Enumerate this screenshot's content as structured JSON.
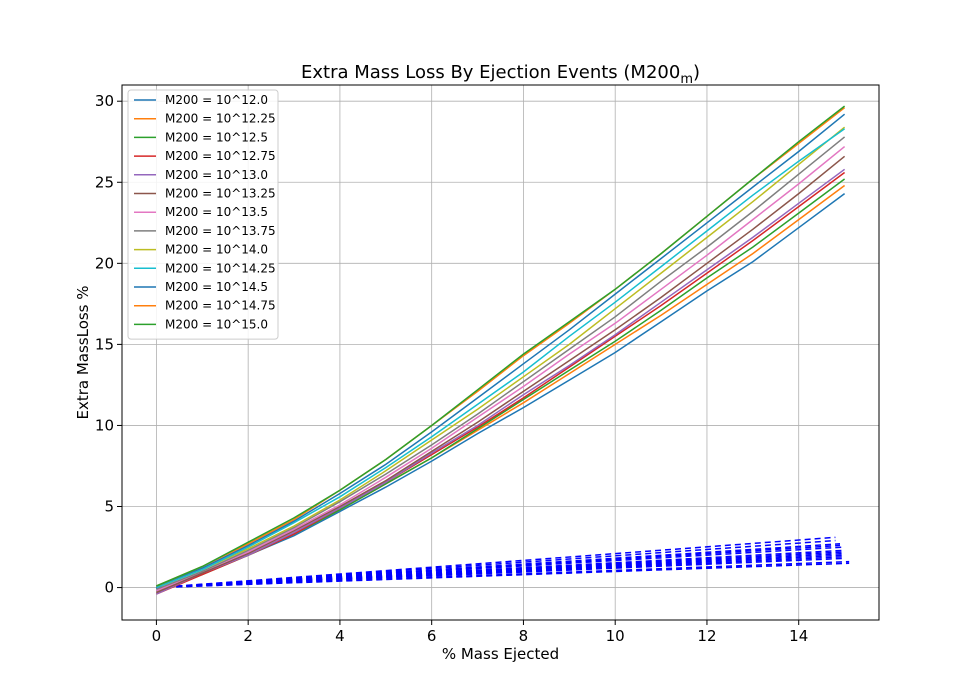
{
  "chart_data": {
    "type": "line",
    "title": "Extra Mass Loss By Ejection Events (M200",
    "title_subscript": "m",
    "title_close": ")",
    "xlabel": "% Mass Ejected",
    "ylabel": "Extra MassLoss %",
    "xlim": [
      -0.75,
      15.75
    ],
    "ylim": [
      -2,
      31
    ],
    "xticks": [
      0,
      2,
      4,
      6,
      8,
      10,
      12,
      14
    ],
    "yticks": [
      0,
      5,
      10,
      15,
      20,
      25,
      30
    ],
    "grid": true,
    "legend_position": "upper-left",
    "x": [
      0,
      1,
      2,
      3,
      4,
      5,
      6,
      7,
      8,
      9,
      10,
      11,
      12,
      13,
      14,
      15
    ],
    "series": [
      {
        "name": "M200 = 10^12.0",
        "color": "#1f77b4",
        "values": [
          -0.2,
          0.9,
          2.0,
          3.2,
          4.7,
          6.2,
          7.8,
          9.5,
          11.1,
          12.8,
          14.5,
          16.4,
          18.3,
          20.1,
          22.2,
          24.3
        ]
      },
      {
        "name": "M200 = 10^12.25",
        "color": "#ff7f0e",
        "values": [
          -0.3,
          0.9,
          2.0,
          3.3,
          4.8,
          6.4,
          8.0,
          9.7,
          11.4,
          13.2,
          15.0,
          16.8,
          18.7,
          20.6,
          22.7,
          24.8
        ]
      },
      {
        "name": "M200 = 10^12.5",
        "color": "#2ca02c",
        "values": [
          -0.3,
          0.8,
          2.0,
          3.3,
          4.8,
          6.4,
          8.0,
          9.8,
          11.6,
          13.4,
          15.2,
          17.1,
          19.1,
          21.0,
          23.1,
          25.2
        ]
      },
      {
        "name": "M200 = 10^12.75",
        "color": "#d62728",
        "values": [
          -0.4,
          0.8,
          2.0,
          3.3,
          4.9,
          6.5,
          8.2,
          9.9,
          11.7,
          13.6,
          15.5,
          17.4,
          19.4,
          21.4,
          23.5,
          25.6
        ]
      },
      {
        "name": "M200 = 10^13.0",
        "color": "#9467bd",
        "values": [
          -0.4,
          0.9,
          2.0,
          3.4,
          4.9,
          6.5,
          8.3,
          10.0,
          11.9,
          13.7,
          15.6,
          17.6,
          19.6,
          21.6,
          23.7,
          25.8
        ]
      },
      {
        "name": "M200 = 10^13.25",
        "color": "#8c564b",
        "values": [
          -0.3,
          0.9,
          2.1,
          3.5,
          5.0,
          6.6,
          8.4,
          10.2,
          12.1,
          14.0,
          15.9,
          17.9,
          20.0,
          22.1,
          24.3,
          26.6
        ]
      },
      {
        "name": "M200 = 10^13.5",
        "color": "#e377c2",
        "values": [
          -0.2,
          1.0,
          2.2,
          3.6,
          5.1,
          6.8,
          8.6,
          10.5,
          12.4,
          14.4,
          16.3,
          18.4,
          20.5,
          22.7,
          24.9,
          27.2
        ]
      },
      {
        "name": "M200 = 10^13.75",
        "color": "#7f7f7f",
        "values": [
          -0.1,
          1.0,
          2.3,
          3.7,
          5.3,
          7.0,
          8.8,
          10.7,
          12.7,
          14.7,
          16.7,
          18.9,
          21.0,
          23.2,
          25.5,
          27.8
        ]
      },
      {
        "name": "M200 = 10^14.0",
        "color": "#bcbd22",
        "values": [
          0.0,
          1.1,
          2.4,
          3.8,
          5.4,
          7.2,
          9.1,
          11.0,
          13.0,
          15.0,
          17.2,
          19.4,
          21.6,
          23.8,
          26.1,
          28.4
        ]
      },
      {
        "name": "M200 = 10^14.25",
        "color": "#17becf",
        "values": [
          0.0,
          1.1,
          2.5,
          4.0,
          5.6,
          7.4,
          9.3,
          11.3,
          13.3,
          15.5,
          17.6,
          19.8,
          22.0,
          24.2,
          26.3,
          28.3
        ]
      },
      {
        "name": "M200 = 10^14.5",
        "color": "#1f77b4",
        "values": [
          0.1,
          1.2,
          2.6,
          4.1,
          5.8,
          7.6,
          9.6,
          11.7,
          13.8,
          15.9,
          18.1,
          20.3,
          22.5,
          24.7,
          26.9,
          29.2
        ]
      },
      {
        "name": "M200 = 10^14.75",
        "color": "#ff7f0e",
        "values": [
          0.1,
          1.3,
          2.7,
          4.2,
          6.0,
          7.9,
          10.0,
          12.1,
          14.3,
          16.3,
          18.4,
          20.6,
          22.9,
          25.2,
          27.4,
          29.6
        ]
      },
      {
        "name": "M200 = 10^15.0",
        "color": "#2ca02c",
        "values": [
          0.1,
          1.3,
          2.8,
          4.3,
          6.0,
          7.9,
          10.0,
          12.2,
          14.4,
          16.4,
          18.4,
          20.6,
          22.9,
          25.2,
          27.5,
          29.7
        ]
      }
    ],
    "reference_series": {
      "color": "#0000ff",
      "style": "dashed",
      "x_end": [
        14.8,
        14.8,
        14.9,
        14.9,
        15.0,
        15.0,
        15.0,
        15.0,
        15.0,
        15.0,
        15.0,
        15.1,
        15.1
      ],
      "y_end": [
        3.1,
        2.9,
        2.7,
        2.6,
        2.5,
        2.3,
        2.2,
        2.1,
        2.0,
        1.9,
        1.8,
        1.6,
        1.5
      ]
    }
  }
}
